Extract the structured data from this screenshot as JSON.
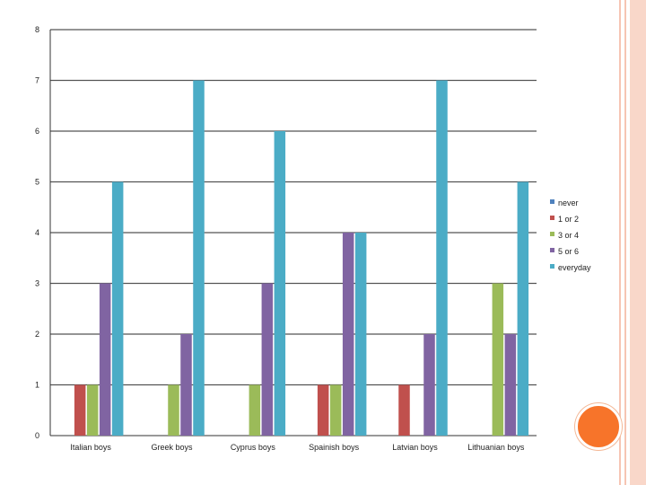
{
  "chart_data": {
    "type": "bar",
    "categories": [
      "Italian boys",
      "Greek boys",
      "Cyprus boys",
      "Spainish boys",
      "Latvian boys",
      "Lithuanian boys"
    ],
    "series": [
      {
        "name": "never",
        "color": "#4f81bd",
        "values": [
          0,
          0,
          0,
          0,
          0,
          0
        ]
      },
      {
        "name": "1 or 2",
        "color": "#c0504d",
        "values": [
          1,
          0,
          0,
          1,
          1,
          0
        ]
      },
      {
        "name": "3 or 4",
        "color": "#9bbb59",
        "values": [
          1,
          1,
          1,
          1,
          0,
          3
        ]
      },
      {
        "name": "5 or 6",
        "color": "#8064a2",
        "values": [
          3,
          2,
          3,
          4,
          2,
          2
        ]
      },
      {
        "name": "everyday",
        "color": "#4bacc6",
        "values": [
          5,
          7,
          6,
          4,
          7,
          5
        ]
      }
    ],
    "yticks": [
      "0",
      "1",
      "2",
      "3",
      "4",
      "5",
      "6",
      "7",
      "8"
    ],
    "ylim": [
      0,
      8
    ],
    "grid": true,
    "legend_position": "right"
  },
  "decor": {
    "frame_color": "#f6c5b3",
    "accent_dot_color": "#f7742a"
  }
}
